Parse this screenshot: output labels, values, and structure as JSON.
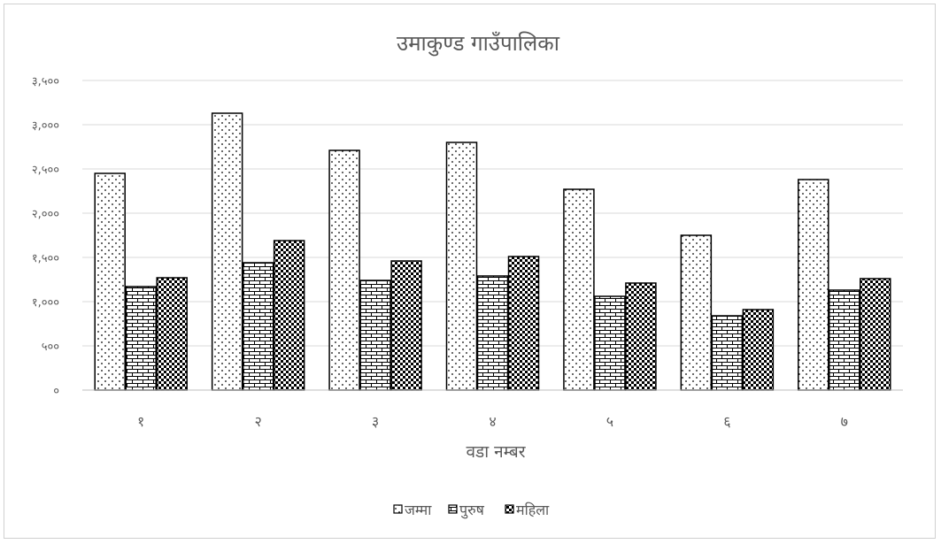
{
  "chart_data": {
    "type": "bar",
    "title": "उमाकुण्ड गाउँपालिका",
    "xlabel": "वडा नम्बर",
    "ylabel": "",
    "categories": [
      "१",
      "२",
      "३",
      "४",
      "५",
      "६",
      "७"
    ],
    "series": [
      {
        "name": "जम्मा",
        "pattern": "dots",
        "values": [
          2450,
          3130,
          2710,
          2800,
          2270,
          1750,
          2380
        ]
      },
      {
        "name": "पुरुष",
        "pattern": "bricks",
        "values": [
          1170,
          1440,
          1240,
          1290,
          1060,
          840,
          1130
        ]
      },
      {
        "name": "महिला",
        "pattern": "checker",
        "values": [
          1270,
          1690,
          1460,
          1510,
          1210,
          910,
          1260
        ]
      }
    ],
    "ylim": [
      0,
      3500
    ],
    "yticks": [
      0,
      500,
      1000,
      1500,
      2000,
      2500,
      3000,
      3500
    ],
    "ytick_labels": [
      "०",
      "५००",
      "१,०००",
      "१,५००",
      "२,०००",
      "२,५००",
      "३,०००",
      "३,५००"
    ],
    "grid": true,
    "legend_position": "bottom-center",
    "colors": {
      "outline": "#000000",
      "grid": "#d9d9d9",
      "text": "#595959",
      "axis": "#bfbfbf"
    }
  }
}
